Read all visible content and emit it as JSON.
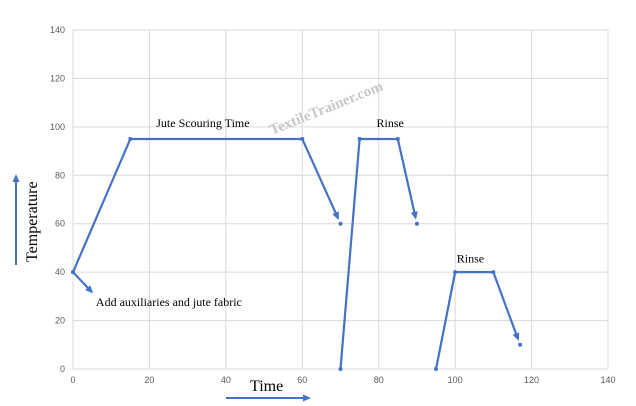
{
  "chart_data": {
    "type": "line",
    "xlabel": "Time",
    "ylabel": "Temperature",
    "xlim": [
      0,
      140
    ],
    "ylim": [
      0,
      140
    ],
    "x_ticks": [
      0,
      20,
      40,
      60,
      80,
      100,
      120,
      140
    ],
    "y_ticks": [
      0,
      20,
      40,
      60,
      80,
      100,
      120,
      140
    ],
    "grid": true,
    "line_color": "#4472c4",
    "series": [
      {
        "points": [
          [
            0,
            40
          ],
          [
            15,
            95
          ],
          [
            60,
            95
          ],
          [
            70,
            60
          ]
        ],
        "end": "arrow"
      },
      {
        "points": [
          [
            70,
            0
          ],
          [
            75,
            95
          ],
          [
            85,
            95
          ],
          [
            90,
            60
          ]
        ],
        "end": "arrow"
      },
      {
        "points": [
          [
            95,
            0
          ],
          [
            100,
            40
          ],
          [
            110,
            40
          ],
          [
            117,
            10
          ]
        ],
        "end": "arrow"
      },
      {
        "points": [
          [
            0,
            40
          ],
          [
            6,
            30
          ]
        ],
        "end": "arrow"
      }
    ],
    "annotations": [
      {
        "text": "Jute Scouring Time",
        "x": 34,
        "y": 100
      },
      {
        "text": "Rinse",
        "x": 83,
        "y": 100
      },
      {
        "text": "Rinse",
        "x": 104,
        "y": 44
      },
      {
        "text": "Add auxiliaries and jute fabric",
        "x": 6,
        "y": 26
      }
    ],
    "watermark": "TextileTrainer.com"
  }
}
